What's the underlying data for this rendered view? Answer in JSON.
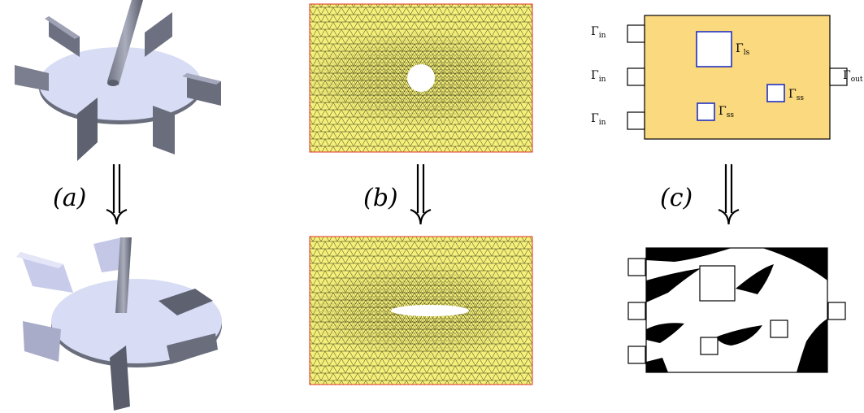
{
  "panels": [
    {
      "id": "a",
      "label": "(a)",
      "top_image": "impeller",
      "bottom_image": "impeller-optimized"
    },
    {
      "id": "b",
      "label": "(b)",
      "top_image": "mesh-circle-hole",
      "bottom_image": "mesh-ellipse-hole"
    },
    {
      "id": "c",
      "label": "(c)",
      "top_image": "domain-schematic",
      "bottom_image": "topology-result",
      "boundaries": {
        "in_base": "Γ",
        "in_sub": "in",
        "out_base": "Γ",
        "out_sub": "out",
        "ls_base": "Γ",
        "ls_sub": "ls",
        "ss_base": "Γ",
        "ss_sub": "ss"
      }
    }
  ],
  "arrow_icon": "double-arrow-down-icon",
  "colors": {
    "mesh_fill": "#f5f07a",
    "mesh_line": "#2a2a10",
    "mesh_border": "#e03020",
    "domain_fill": "#fbd97e",
    "obstacle_border": "#2030c0",
    "impeller_face": "#d8dcf4",
    "impeller_side": "#5e6270",
    "topology_black": "#000000"
  }
}
